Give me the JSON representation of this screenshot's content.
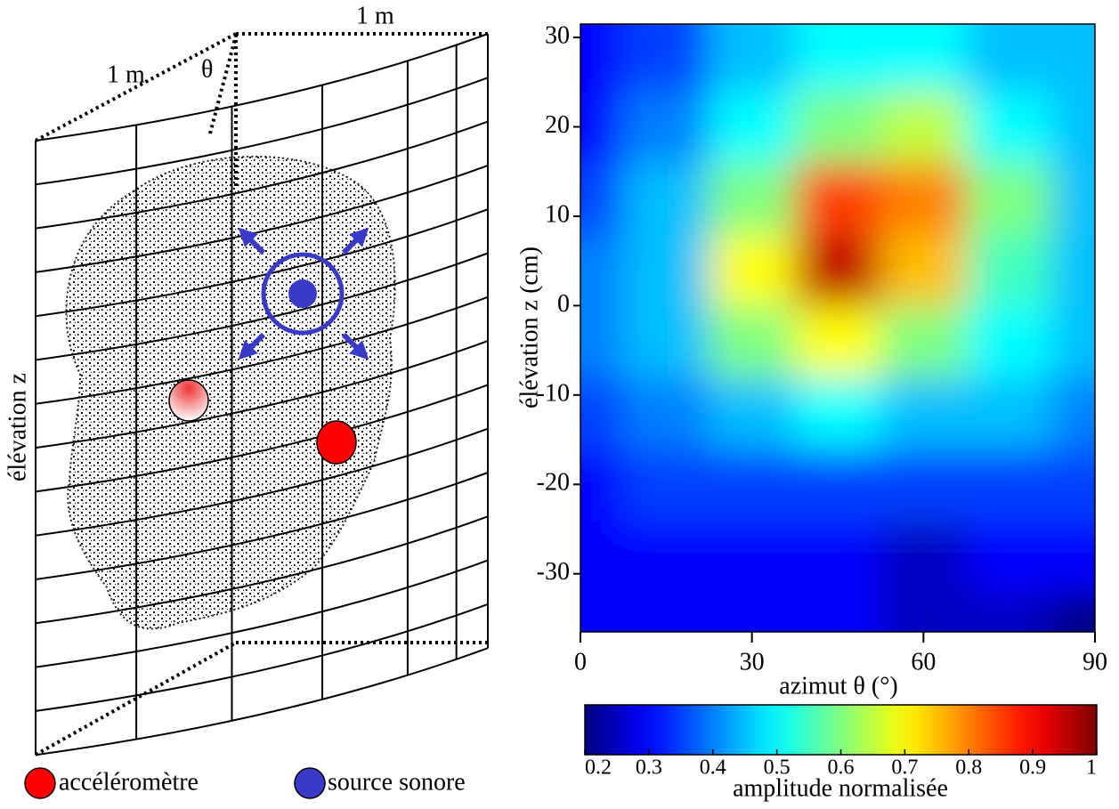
{
  "diagram": {
    "width_label": "1 m",
    "depth_label": "1 m",
    "angle_label": "θ",
    "axis_label": "élévation z",
    "legend": [
      "accéléromètre",
      "source sonore"
    ]
  },
  "chart_data": {
    "type": "heatmap",
    "colormap": "jet",
    "x": [
      0,
      15,
      30,
      45,
      60,
      75,
      90
    ],
    "y": [
      -36,
      -28,
      -20,
      -12,
      -4,
      4,
      12,
      20,
      28
    ],
    "values": [
      [
        0.3,
        0.3,
        0.3,
        0.3,
        0.25,
        0.25,
        0.2
      ],
      [
        0.3,
        0.3,
        0.3,
        0.3,
        0.25,
        0.3,
        0.3
      ],
      [
        0.3,
        0.35,
        0.35,
        0.35,
        0.35,
        0.35,
        0.35
      ],
      [
        0.35,
        0.4,
        0.45,
        0.5,
        0.45,
        0.45,
        0.4
      ],
      [
        0.4,
        0.45,
        0.6,
        0.7,
        0.6,
        0.5,
        0.45
      ],
      [
        0.4,
        0.45,
        0.7,
        0.95,
        0.75,
        0.55,
        0.45
      ],
      [
        0.35,
        0.45,
        0.6,
        0.85,
        0.8,
        0.6,
        0.45
      ],
      [
        0.3,
        0.4,
        0.5,
        0.6,
        0.65,
        0.5,
        0.45
      ],
      [
        0.3,
        0.35,
        0.45,
        0.5,
        0.5,
        0.45,
        0.45
      ]
    ],
    "xlim": [
      0,
      90
    ],
    "ylim": [
      -36.5,
      31.5
    ],
    "xticks": [
      0,
      30,
      60,
      90
    ],
    "yticks": [
      -30,
      -20,
      -10,
      0,
      10,
      20,
      30
    ],
    "xlabel": "azimut θ (°)",
    "ylabel": "élévation z (cm)",
    "colorbar": {
      "label": "amplitude normalisée",
      "clim": [
        0.2,
        1
      ],
      "ticks": [
        0.2,
        0.3,
        0.4,
        0.5,
        0.6,
        0.7,
        0.8,
        0.9,
        1
      ]
    }
  }
}
